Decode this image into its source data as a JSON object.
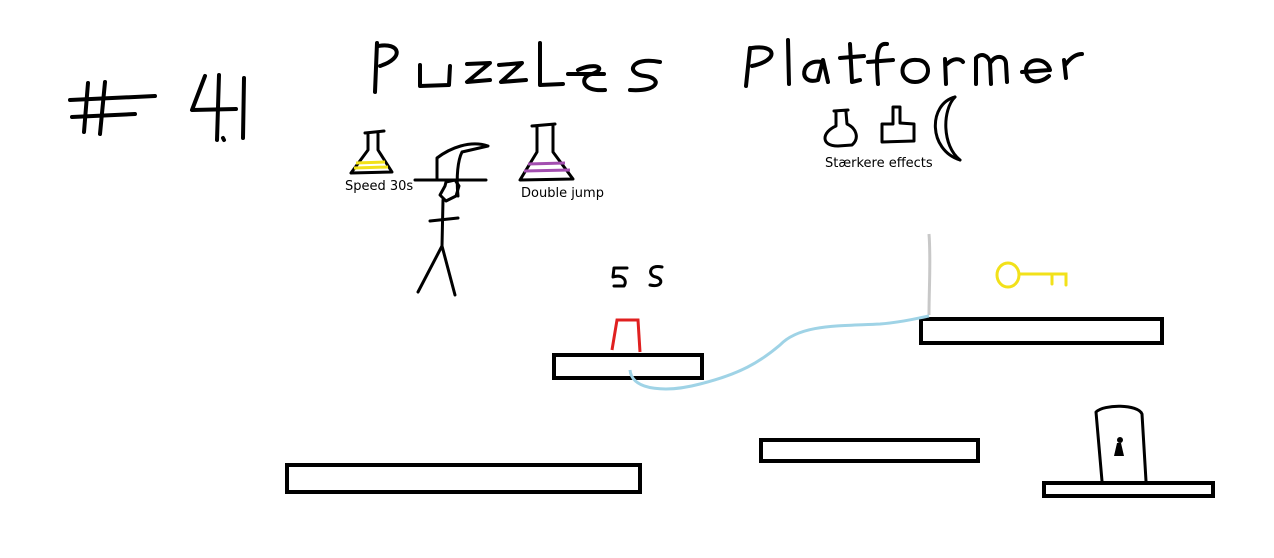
{
  "title_number": "# 4.1",
  "title_word_1": "Puzzles",
  "title_word_2": "Platformer",
  "potions": [
    {
      "label": "Speed 30s",
      "liquid_color": "#f2e11a"
    },
    {
      "label": "Double jump",
      "liquid_color": "#a34fb0"
    }
  ],
  "upgrades_label": "Stærkere effects",
  "timer_label": "5 S",
  "colors": {
    "ink": "#000000",
    "rope": "#9fd3e6",
    "pole": "#c8c8c8",
    "button": "#e02020",
    "key": "#f2e11a"
  },
  "icons": [
    "stickman-player-icon",
    "speed-potion-icon",
    "double-jump-potion-icon",
    "potion-upgrade-icon",
    "block-upgrade-icon",
    "moon-upgrade-icon",
    "red-button-icon",
    "key-icon",
    "locked-door-icon"
  ]
}
